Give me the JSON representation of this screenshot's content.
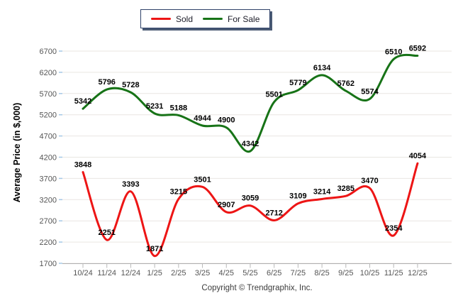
{
  "legend": {
    "items": [
      {
        "label": "Sold"
      },
      {
        "label": "For Sale"
      }
    ]
  },
  "footer": {
    "copyright": "Copyright © Trendgraphix, Inc."
  },
  "colors": {
    "sold_line": "#ed1515",
    "for_sale_line": "#177317",
    "gridline": "#e9e6e2",
    "axis_line": "#b0b0b0",
    "left_tick": "#a5c8e6",
    "bottom_tick": "#b9b9b9",
    "axis_text": "#555555",
    "data_label_text": "#000000"
  },
  "chart_data": {
    "type": "line",
    "title": "",
    "xlabel": "",
    "ylabel": "Average Price (in $,000)",
    "categories": [
      "10/24",
      "11/24",
      "12/24",
      "1/25",
      "2/25",
      "3/25",
      "4/25",
      "5/25",
      "6/25",
      "7/25",
      "8/25",
      "9/25",
      "10/25",
      "11/25",
      "12/25"
    ],
    "series": [
      {
        "name": "Sold",
        "color": "#ed1515",
        "values": [
          3848,
          2251,
          3393,
          1871,
          3215,
          3501,
          2907,
          3059,
          2712,
          3109,
          3214,
          3285,
          3470,
          2354,
          4054
        ]
      },
      {
        "name": "For Sale",
        "color": "#177317",
        "values": [
          5342,
          5796,
          5728,
          5231,
          5188,
          4944,
          4900,
          4342,
          5501,
          5779,
          6134,
          5762,
          5574,
          6510,
          6592
        ]
      }
    ],
    "ylim": [
      1700,
      6700
    ],
    "ytick_step": 500,
    "grid": true,
    "legend_position": "top-center",
    "data_labels": true
  }
}
